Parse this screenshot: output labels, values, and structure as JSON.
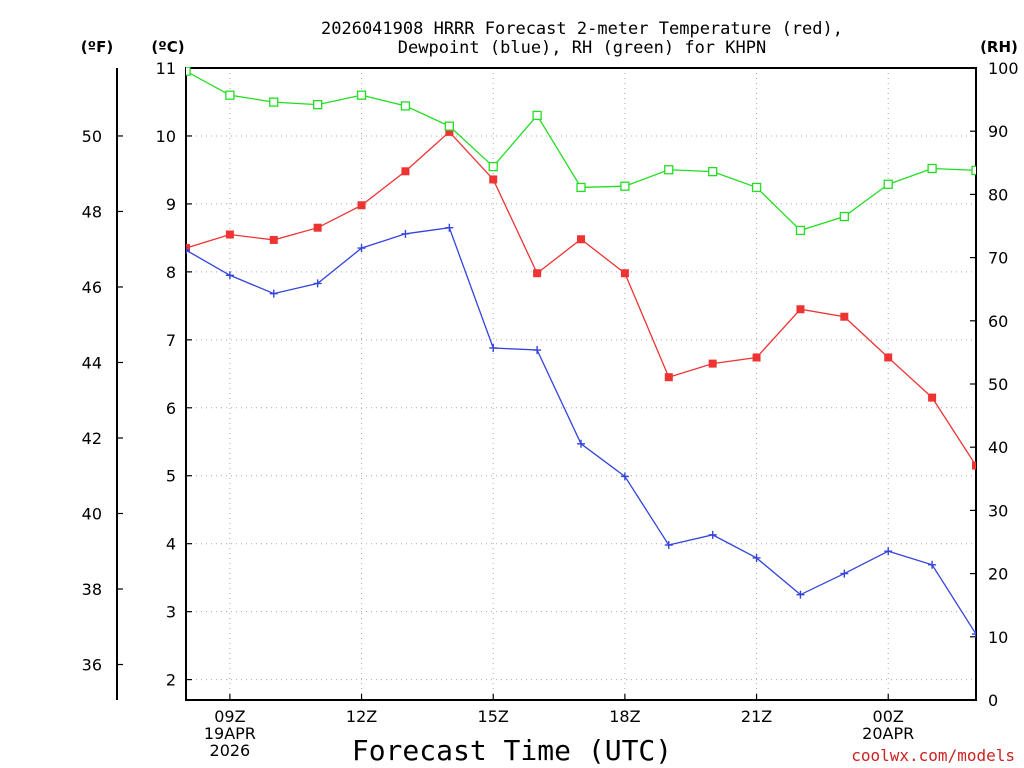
{
  "chart_data": {
    "type": "line",
    "title_line1": "2026041908 HRRR Forecast 2-meter Temperature (red),",
    "title_line2": "Dewpoint (blue), RH (green) for KHPN",
    "xlabel": "Forecast Time (UTC)",
    "watermark": "coolwx.com/models",
    "unit_labels": {
      "fahrenheit": "(ºF)",
      "celsius": "(ºC)",
      "rh": "(RH)"
    },
    "x_range": [
      8,
      26
    ],
    "x_ticks": [
      {
        "x": 9,
        "lines": [
          "09Z",
          "19APR",
          "2026"
        ]
      },
      {
        "x": 12,
        "lines": [
          "12Z"
        ]
      },
      {
        "x": 15,
        "lines": [
          "15Z"
        ]
      },
      {
        "x": 18,
        "lines": [
          "18Z"
        ]
      },
      {
        "x": 21,
        "lines": [
          "21Z"
        ]
      },
      {
        "x": 24,
        "lines": [
          "00Z",
          "20APR"
        ]
      }
    ],
    "celsius_axis": {
      "range": [
        1.7,
        11.0
      ],
      "ticks": [
        2,
        3,
        4,
        5,
        6,
        7,
        8,
        9,
        10,
        11
      ]
    },
    "fahrenheit_axis": {
      "range": [
        35.06,
        51.8
      ],
      "ticks": [
        36,
        38,
        40,
        42,
        44,
        46,
        48,
        50
      ]
    },
    "rh_axis": {
      "range": [
        0,
        100
      ],
      "ticks": [
        0,
        10,
        20,
        30,
        40,
        50,
        60,
        70,
        80,
        90,
        100
      ]
    },
    "series": [
      {
        "name": "Temperature",
        "axis": "celsius",
        "color": "#ee3333",
        "marker": "filled-square",
        "x": [
          8,
          9,
          10,
          11,
          12,
          13,
          14,
          15,
          16,
          17,
          18,
          19,
          20,
          21,
          22,
          23,
          24,
          25,
          26
        ],
        "values": [
          8.35,
          8.55,
          8.47,
          8.65,
          8.98,
          9.48,
          10.06,
          9.36,
          7.98,
          8.48,
          7.98,
          6.45,
          6.65,
          6.74,
          7.45,
          7.34,
          6.74,
          6.15,
          5.15
        ]
      },
      {
        "name": "Dewpoint",
        "axis": "celsius",
        "color": "#3344dd",
        "marker": "plus",
        "x": [
          8,
          9,
          10,
          11,
          12,
          13,
          14,
          15,
          16,
          17,
          18,
          19,
          20,
          21,
          22,
          23,
          24,
          25,
          26
        ],
        "values": [
          8.32,
          7.95,
          7.68,
          7.83,
          8.35,
          8.56,
          8.65,
          6.88,
          6.85,
          5.47,
          4.99,
          3.98,
          4.13,
          3.79,
          3.25,
          3.56,
          3.89,
          3.69,
          2.67
        ]
      },
      {
        "name": "RH",
        "axis": "rh",
        "color": "#22dd22",
        "marker": "open-square",
        "x": [
          8,
          9,
          10,
          11,
          12,
          13,
          14,
          15,
          16,
          17,
          18,
          19,
          20,
          21,
          22,
          23,
          24,
          25,
          26
        ],
        "values": [
          99.5,
          95.7,
          94.6,
          94.2,
          95.7,
          94.0,
          90.8,
          84.4,
          92.5,
          81.1,
          81.3,
          83.9,
          83.6,
          81.1,
          74.3,
          76.5,
          81.6,
          84.1,
          83.8
        ]
      }
    ]
  }
}
